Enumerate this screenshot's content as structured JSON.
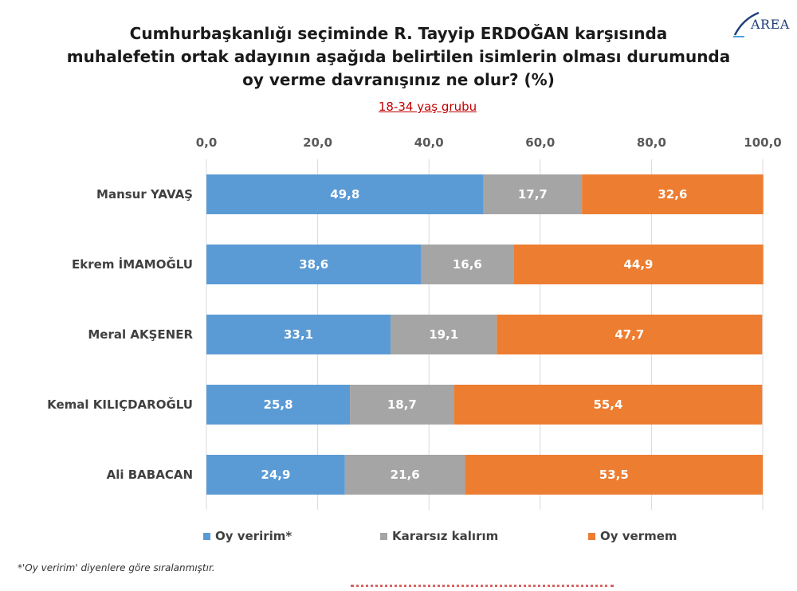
{
  "title": "Cumhurbaşkanlığı seçiminde R. Tayyip ERDOĞAN karşısında muhalefetin ortak adayının aşağıda belirtilen isimlerin olması durumunda oy verme davranışınız ne olur? (%)",
  "title_lines": [
    "Cumhurbaşkanlığı seçiminde R. Tayyip ERDOĞAN karşısında",
    "muhalefetin ortak adayının aşağıda belirtilen isimlerin olması durumunda",
    "oy verme davranışınız ne olur? (%)"
  ],
  "subtitle": "18-34 yaş grubu",
  "logo": "AREA",
  "footnote": "*'Oy veririm' diyenlere göre sıralanmıştır.",
  "colors": {
    "blue": "#5b9bd5",
    "gray": "#a5a5a5",
    "orange": "#ed7d31"
  },
  "chart_data": {
    "type": "bar",
    "orientation": "horizontal",
    "stacked": true,
    "categories": [
      "Mansur YAVAŞ",
      "Ekrem İMAMOĞLU",
      "Meral AKŞENER",
      "Kemal KILIÇDAROĞLU",
      "Ali BABACAN"
    ],
    "series": [
      {
        "name": "Oy veririm*",
        "color": "#5b9bd5",
        "values": [
          49.8,
          38.6,
          33.1,
          25.8,
          24.9
        ]
      },
      {
        "name": "Kararsız kalırım",
        "color": "#a5a5a5",
        "values": [
          17.7,
          16.6,
          19.1,
          18.7,
          21.6
        ]
      },
      {
        "name": "Oy vermem",
        "color": "#ed7d31",
        "values": [
          32.6,
          44.9,
          47.7,
          55.4,
          53.5
        ]
      }
    ],
    "xlim": [
      0,
      100
    ],
    "xticks": [
      "0,0",
      "20,0",
      "40,0",
      "60,0",
      "80,0",
      "100,0"
    ],
    "xaxis_position": "top",
    "grid": true,
    "legend_position": "bottom"
  }
}
